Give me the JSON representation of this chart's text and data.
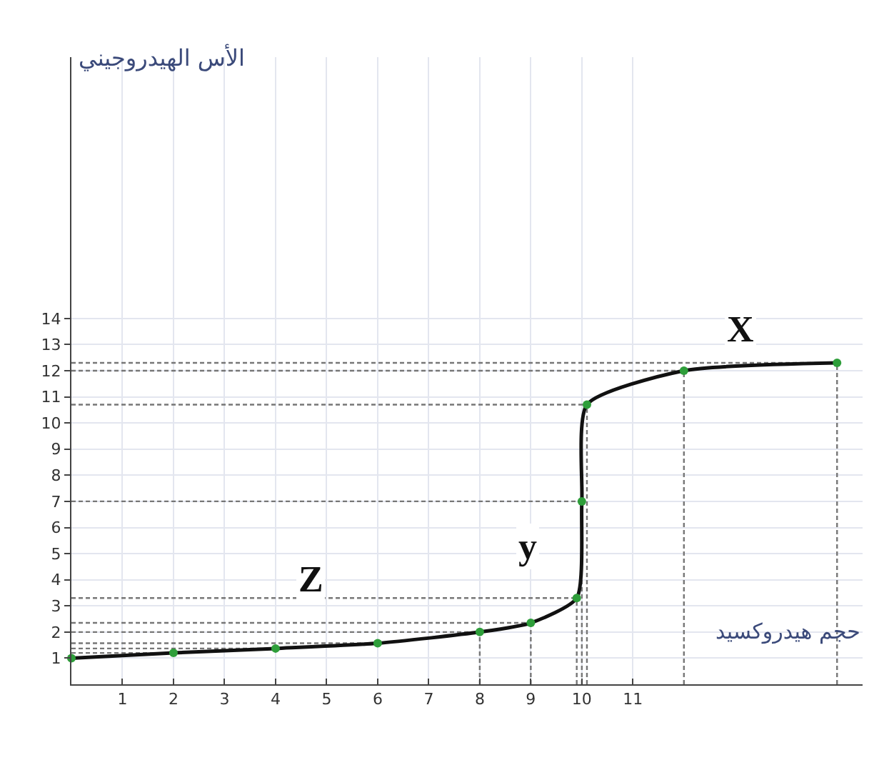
{
  "chart_data": {
    "type": "line",
    "xlabel": "حجم هيدروكسيد",
    "ylabel": "الأس الهيدروجيني",
    "x": [
      0,
      2,
      4,
      6,
      8,
      9,
      9.9,
      10,
      10.1,
      12,
      15
    ],
    "series": [
      {
        "color": "#111111",
        "colors": [
          "#2e9e3a",
          "#2e9e3a",
          "#2e9e3a",
          "#2e9e3a",
          "#2e9e3a",
          "#2e9e3a",
          "#2e9e3a",
          "#2e9e3a",
          "#2e9e3a",
          "#2e9e3a",
          "#2e9e3a"
        ],
        "values": [
          1,
          1.2,
          1.37,
          1.57,
          2,
          2.35,
          3.3,
          7,
          10.7,
          12,
          12.3
        ]
      }
    ],
    "xlim": [
      0,
      15.5
    ],
    "xticks": [
      1,
      2,
      3,
      4,
      5,
      6,
      7,
      8,
      9,
      10,
      11
    ],
    "ylim": [
      0,
      24
    ],
    "yticks": [
      1,
      2,
      3,
      4,
      5,
      6,
      7,
      8,
      9,
      10,
      11,
      12,
      13,
      14
    ],
    "grid": true,
    "marker": "circle",
    "line_style": "solid",
    "ref_lines": [
      {
        "axis": "y",
        "value": 1.2,
        "line_style": "dashed"
      },
      {
        "axis": "y",
        "value": 1.37,
        "line_style": "dashed"
      },
      {
        "axis": "y",
        "value": 1.57,
        "line_style": "dashed"
      },
      {
        "axis": "y",
        "value": 2,
        "line_style": "dashed"
      },
      {
        "axis": "y",
        "value": 2.35,
        "line_style": "dashed"
      },
      {
        "axis": "y",
        "value": 3.3,
        "line_style": "dashed"
      },
      {
        "axis": "y",
        "value": 7,
        "line_style": "dashed"
      },
      {
        "axis": "y",
        "value": 10.7,
        "line_style": "dashed"
      },
      {
        "axis": "y",
        "value": 12,
        "line_style": "dashed"
      },
      {
        "axis": "y",
        "value": 12.3,
        "line_style": "dashed"
      },
      {
        "axis": "x",
        "value": 8,
        "line_style": "dashed"
      },
      {
        "axis": "x",
        "value": 9,
        "line_style": "dashed"
      },
      {
        "axis": "x",
        "value": 9.9,
        "line_style": "dashed"
      },
      {
        "axis": "x",
        "value": 10,
        "line_style": "dashed"
      },
      {
        "axis": "x",
        "value": 10.1,
        "line_style": "dashed"
      },
      {
        "axis": "x",
        "value": 12,
        "line_style": "dashed"
      },
      {
        "axis": "x",
        "value": 15,
        "line_style": "dashed"
      }
    ],
    "annotations": [
      {
        "text": "X",
        "x": 13.1,
        "y": 13.6
      },
      {
        "text": "y",
        "x": 8.95,
        "y": 5.3
      },
      {
        "text": "Z",
        "x": 4.7,
        "y": 4
      }
    ]
  }
}
